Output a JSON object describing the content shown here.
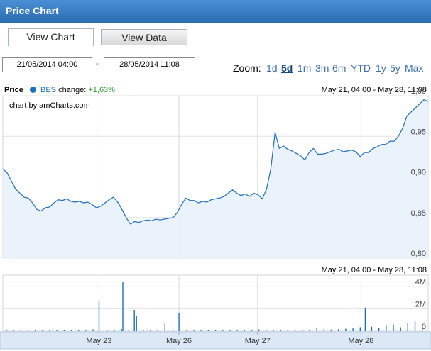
{
  "header": {
    "title": "Price Chart"
  },
  "tabs": [
    {
      "label": "View Chart",
      "active": true
    },
    {
      "label": "View Data",
      "active": false
    }
  ],
  "date_range": {
    "from": "21/05/2014 04:00",
    "separator": "-",
    "to": "28/05/2014 11:08"
  },
  "zoom": {
    "label": "Zoom:",
    "options": [
      "1d",
      "5d",
      "1m",
      "3m",
      "6m",
      "YTD",
      "1y",
      "5y",
      "Max"
    ],
    "selected": "5d"
  },
  "legend": {
    "price_label": "Price",
    "series_name": "BES",
    "change_label": "change:",
    "change_value": "+1,63%",
    "series_color": "#1d6fc0",
    "change_color": "#2a9d2a"
  },
  "range_label_top": "May 21, 04:00 - May 28, 11:08",
  "range_label_volume": "May 21, 04:00 - May 28, 11:08",
  "credit": "chart by amCharts.com",
  "chart_data": [
    {
      "type": "area",
      "ylim": [
        0.8,
        1.0
      ],
      "yticks": [
        "1,00",
        "0,95",
        "0,90",
        "0,85",
        "0,80"
      ],
      "ytick_values": [
        1.0,
        0.95,
        0.9,
        0.85,
        0.8
      ],
      "grid": true,
      "x_domain": [
        0,
        100
      ],
      "x_tick_positions": [
        22.6,
        41.4,
        59.9,
        84.2
      ],
      "series": [
        {
          "x": [
            0,
            1,
            2,
            3,
            4,
            5,
            6,
            7,
            8,
            9,
            10,
            11,
            12,
            13,
            14,
            15,
            16,
            17,
            18,
            19,
            20,
            21,
            22,
            23,
            24,
            25,
            26,
            27,
            28,
            29,
            30,
            31,
            32,
            33,
            34,
            35,
            36,
            37,
            38,
            39,
            40,
            41,
            42,
            43,
            44,
            45,
            46,
            47,
            48,
            49,
            50,
            51,
            52,
            53,
            54,
            55,
            56,
            57,
            58,
            59,
            60,
            61,
            62,
            63,
            64,
            65,
            66,
            67,
            68,
            69,
            70,
            71,
            72,
            73,
            74,
            75,
            76,
            77,
            78,
            79,
            80,
            81,
            82,
            83,
            84,
            85,
            86,
            87,
            88,
            89,
            90,
            91,
            92,
            93,
            94,
            95,
            96,
            97,
            98,
            99,
            100
          ],
          "y": [
            0.91,
            0.905,
            0.895,
            0.885,
            0.88,
            0.875,
            0.874,
            0.868,
            0.86,
            0.858,
            0.862,
            0.863,
            0.868,
            0.872,
            0.871,
            0.873,
            0.87,
            0.869,
            0.87,
            0.868,
            0.869,
            0.866,
            0.862,
            0.864,
            0.868,
            0.872,
            0.875,
            0.869,
            0.86,
            0.85,
            0.842,
            0.845,
            0.844,
            0.846,
            0.847,
            0.846,
            0.848,
            0.847,
            0.848,
            0.849,
            0.85,
            0.856,
            0.866,
            0.874,
            0.871,
            0.871,
            0.868,
            0.87,
            0.869,
            0.872,
            0.873,
            0.874,
            0.876,
            0.88,
            0.884,
            0.88,
            0.877,
            0.879,
            0.876,
            0.88,
            0.878,
            0.873,
            0.885,
            0.91,
            0.955,
            0.935,
            0.938,
            0.934,
            0.932,
            0.929,
            0.926,
            0.921,
            0.93,
            0.935,
            0.928,
            0.928,
            0.929,
            0.931,
            0.933,
            0.934,
            0.931,
            0.932,
            0.933,
            0.931,
            0.925,
            0.93,
            0.93,
            0.935,
            0.937,
            0.94,
            0.94,
            0.944,
            0.944,
            0.95,
            0.96,
            0.975,
            0.98,
            0.985,
            0.99,
            0.995,
            0.993
          ]
        }
      ]
    },
    {
      "type": "bar",
      "ylim": [
        0,
        5000000
      ],
      "yticks": [
        "4M",
        "2M",
        "0"
      ],
      "ytick_values": [
        4000000,
        2000000,
        0
      ],
      "grid": true,
      "series": [
        {
          "name": "Volume",
          "x": [
            0.8,
            2.5,
            4.2,
            5.9,
            7.6,
            9.3,
            11,
            12.7,
            14.4,
            16.1,
            17.8,
            19.5,
            21.2,
            22.6,
            24.5,
            26.2,
            27.9,
            28.2,
            29.6,
            30.9,
            31.4,
            33,
            34.7,
            36.4,
            38.1,
            40,
            41.4,
            43.2,
            44.9,
            46.6,
            48.3,
            50,
            51.7,
            53.4,
            55.1,
            56.8,
            58.5,
            60.2,
            61.9,
            63.6,
            65.3,
            67,
            68.7,
            70.4,
            72.1,
            73.8,
            75.5,
            77.2,
            78.9,
            80.6,
            82.3,
            84,
            85.2,
            86.7,
            88.4,
            90.1,
            91.8,
            93.5,
            95.2,
            96.9,
            98.6
          ],
          "values": [
            150000,
            100000,
            120000,
            90000,
            80000,
            110000,
            95000,
            85000,
            130000,
            90000,
            100000,
            120000,
            160000,
            2700000,
            110000,
            90000,
            180000,
            4400000,
            100000,
            1900000,
            1400000,
            90000,
            120000,
            100000,
            700000,
            140000,
            1600000,
            90000,
            110000,
            80000,
            130000,
            90000,
            100000,
            120000,
            90000,
            110000,
            100000,
            150000,
            100000,
            90000,
            120000,
            140000,
            110000,
            100000,
            130000,
            300000,
            200000,
            150000,
            180000,
            220000,
            250000,
            350000,
            2100000,
            400000,
            300000,
            500000,
            600000,
            350000,
            700000,
            900000,
            500000
          ]
        }
      ]
    }
  ],
  "x_axis": {
    "labels": [
      "May 23",
      "May 26",
      "May 27",
      "May 28"
    ]
  }
}
